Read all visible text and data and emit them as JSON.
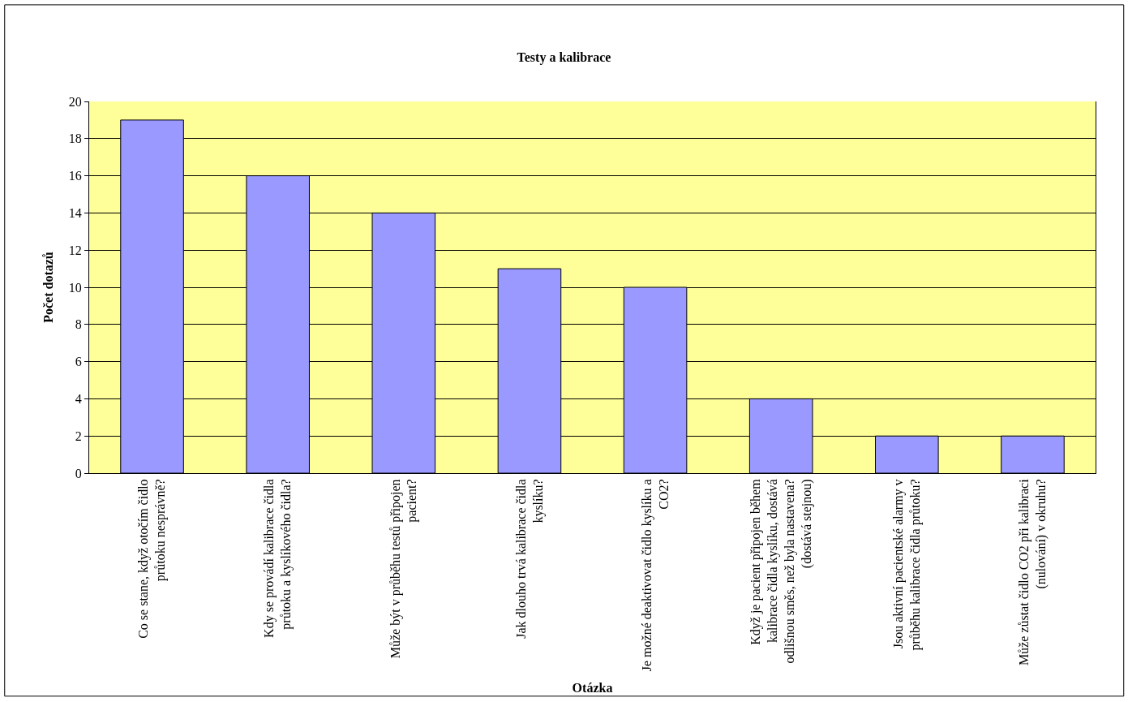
{
  "chart_data": {
    "type": "bar",
    "title": "Testy a kalibrace",
    "xlabel": "Otázka",
    "ylabel": "Počet dotazů",
    "categories": [
      "Co se stane, když otočím čidlo průtoku nesprávně?",
      "Kdy se provádí kalibrace čidla průtoku a kyslíkového čidla?",
      "Může být v průběhu testů připojen pacient?",
      "Jak dlouho trvá kalibrace čidla kyslíku?",
      "Je možné deaktivovat čidlo kyslíku a CO2?",
      "Když je pacient připojen během kalibrace čidla kyslíku, dostává odlišnou směs, než byla nastavena? (dostává stejnou)",
      "Jsou aktivní pacientské alarmy v průběhu kalibrace čidla průtoku?",
      "Může zůstat čidlo CO2 při kalibraci (nulování) v okruhu?"
    ],
    "values": [
      19,
      16,
      14,
      11,
      10,
      4,
      2,
      2
    ],
    "color": "#9999ff",
    "ylim": [
      0,
      20
    ],
    "yticks": [
      0,
      2,
      4,
      6,
      8,
      10,
      12,
      14,
      16,
      18,
      20
    ],
    "grid": "y"
  }
}
